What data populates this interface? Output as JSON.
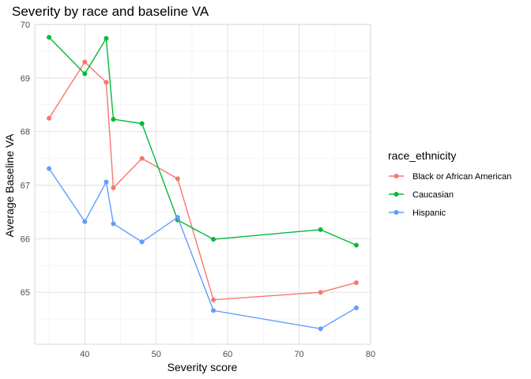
{
  "chart_data": {
    "type": "line",
    "title": "Severity by race and baseline VA",
    "xlabel": "Severity score",
    "ylabel": "Average Baseline VA",
    "xlim": [
      33,
      80
    ],
    "ylim": [
      64.03,
      70.0
    ],
    "x_ticks": [
      40,
      50,
      60,
      70,
      80
    ],
    "y_ticks": [
      65,
      66,
      67,
      68,
      69,
      70
    ],
    "grid": true,
    "legend": {
      "title": "race_ethnicity",
      "placement": "right"
    },
    "series": [
      {
        "name": "Black or African American",
        "color": "#F8766D",
        "x": [
          35,
          40,
          43,
          44,
          48,
          53,
          58,
          73,
          78
        ],
        "y": [
          68.25,
          69.3,
          68.92,
          66.95,
          67.5,
          67.12,
          64.86,
          65.0,
          65.18
        ]
      },
      {
        "name": "Caucasian",
        "color": "#00BA38",
        "x": [
          35,
          40,
          43,
          44,
          48,
          53,
          58,
          73,
          78
        ],
        "y": [
          69.76,
          69.08,
          69.74,
          68.23,
          68.15,
          66.35,
          65.99,
          66.17,
          65.88
        ]
      },
      {
        "name": "Hispanic",
        "color": "#619CFF",
        "x": [
          35,
          40,
          43,
          44,
          48,
          53,
          58,
          73,
          78
        ],
        "y": [
          67.31,
          66.32,
          67.06,
          66.28,
          65.94,
          66.4,
          64.66,
          64.32,
          64.71
        ]
      }
    ]
  }
}
